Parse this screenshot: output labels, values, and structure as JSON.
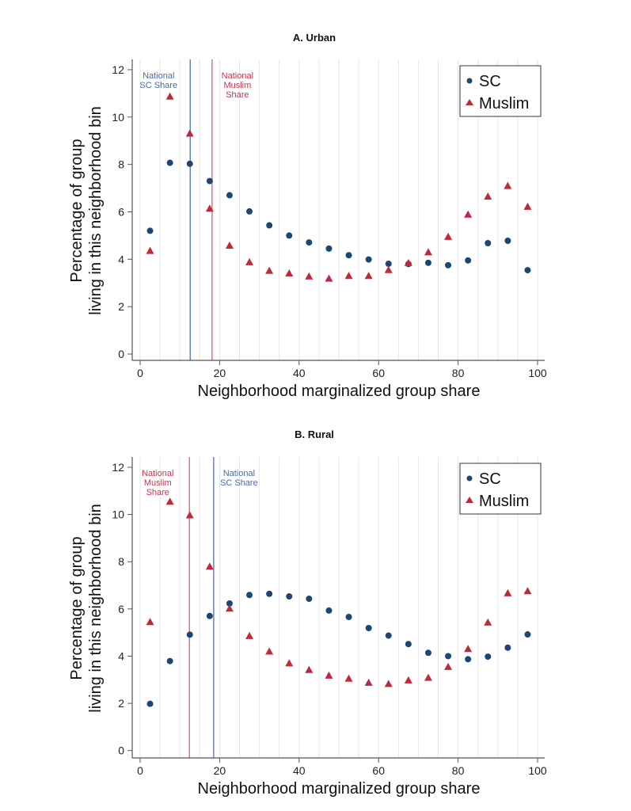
{
  "colors": {
    "sc": "#1b4777",
    "muslim": "#c0283c",
    "sc_line": "#5b7fae",
    "muslim_line": "#da6a7b",
    "grid": "#e6e6e6",
    "axis": "#555555"
  },
  "chart_data": [
    {
      "type": "scatter",
      "title": "A. Urban",
      "xlabel": "Neighborhood marginalized group share",
      "ylabel": [
        "Percentage of group",
        "living in this neighborhood bin"
      ],
      "xlim": [
        0,
        100
      ],
      "ylim": [
        0,
        12
      ],
      "xticks": [
        0,
        20,
        40,
        60,
        80,
        100
      ],
      "yticks": [
        0,
        2,
        4,
        6,
        8,
        10,
        12
      ],
      "grid": "vertical every 5",
      "legend": {
        "placement": "top-right",
        "entries": [
          "SC",
          "Muslim"
        ]
      },
      "x": [
        2.5,
        7.5,
        12.5,
        17.5,
        22.5,
        27.5,
        32.5,
        37.5,
        42.5,
        47.5,
        52.5,
        57.5,
        62.5,
        67.5,
        72.5,
        77.5,
        82.5,
        87.5,
        92.5,
        97.5
      ],
      "series": [
        {
          "name": "SC",
          "marker": "circle",
          "values": [
            5.2,
            8.07,
            8.03,
            7.3,
            6.7,
            6.02,
            5.43,
            5.0,
            4.71,
            4.45,
            4.17,
            3.99,
            3.81,
            3.8,
            3.85,
            3.75,
            3.95,
            4.68,
            4.78,
            3.54
          ]
        },
        {
          "name": "Muslim",
          "marker": "triangle",
          "values": [
            4.36,
            10.87,
            9.31,
            6.14,
            4.58,
            3.88,
            3.52,
            3.41,
            3.28,
            3.19,
            3.3,
            3.3,
            3.55,
            3.85,
            4.3,
            4.95,
            5.89,
            6.65,
            7.1,
            6.22
          ]
        }
      ],
      "reference_lines": [
        {
          "group": "SC",
          "x": 12.6,
          "label": [
            "National",
            "SC Share"
          ],
          "label_side": "left"
        },
        {
          "group": "Muslim",
          "x": 18.1,
          "label": [
            "National",
            "Muslim",
            "Share"
          ],
          "label_side": "right"
        }
      ]
    },
    {
      "type": "scatter",
      "title": "B. Rural",
      "xlabel": "Neighborhood marginalized group share",
      "ylabel": [
        "Percentage of group",
        "living in this neighborhood bin"
      ],
      "xlim": [
        0,
        100
      ],
      "ylim": [
        0,
        12
      ],
      "xticks": [
        0,
        20,
        40,
        60,
        80,
        100
      ],
      "yticks": [
        0,
        2,
        4,
        6,
        8,
        10,
        12
      ],
      "grid": "vertical every 5",
      "legend": {
        "placement": "top-right",
        "entries": [
          "SC",
          "Muslim"
        ]
      },
      "x": [
        2.5,
        7.5,
        12.5,
        17.5,
        22.5,
        27.5,
        32.5,
        37.5,
        42.5,
        47.5,
        52.5,
        57.5,
        62.5,
        67.5,
        72.5,
        77.5,
        82.5,
        87.5,
        92.5,
        97.5
      ],
      "series": [
        {
          "name": "SC",
          "marker": "circle",
          "values": [
            1.98,
            3.79,
            4.91,
            5.7,
            6.23,
            6.59,
            6.64,
            6.53,
            6.43,
            5.93,
            5.66,
            5.19,
            4.87,
            4.51,
            4.14,
            4.0,
            3.87,
            3.98,
            4.36,
            4.92
          ]
        },
        {
          "name": "Muslim",
          "marker": "triangle",
          "values": [
            5.45,
            10.55,
            9.97,
            7.8,
            6.02,
            4.86,
            4.2,
            3.7,
            3.42,
            3.18,
            3.05,
            2.88,
            2.83,
            2.98,
            3.09,
            3.55,
            4.31,
            5.43,
            6.67,
            6.76
          ]
        }
      ],
      "reference_lines": [
        {
          "group": "Muslim",
          "x": 12.4,
          "label": [
            "National",
            "Muslim",
            "Share"
          ],
          "label_side": "left"
        },
        {
          "group": "SC",
          "x": 18.5,
          "label": [
            "National",
            "SC Share"
          ],
          "label_side": "right"
        }
      ]
    }
  ]
}
